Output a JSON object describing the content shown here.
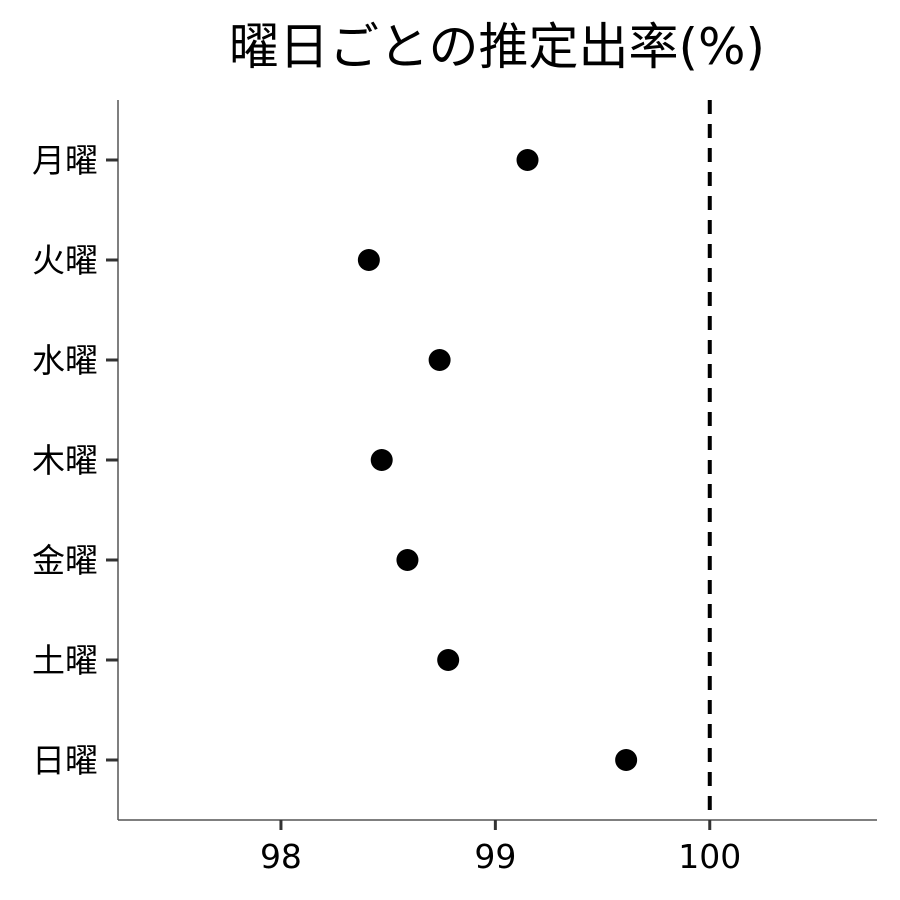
{
  "chart_data": {
    "type": "scatter",
    "title": "曜日ごとの推定出率(%)",
    "xlabel": "",
    "ylabel": "",
    "categories": [
      "月曜",
      "火曜",
      "水曜",
      "木曜",
      "金曜",
      "土曜",
      "日曜"
    ],
    "values": [
      99.15,
      98.41,
      98.74,
      98.47,
      98.59,
      98.78,
      99.61
    ],
    "xlim": [
      97.24,
      100.78
    ],
    "xticks": [
      "98",
      "99",
      "100"
    ],
    "reference_line": {
      "x": 100,
      "style": "dashed",
      "color": "#000000"
    },
    "point_color": "#000000",
    "grid": false,
    "legend": "none"
  }
}
